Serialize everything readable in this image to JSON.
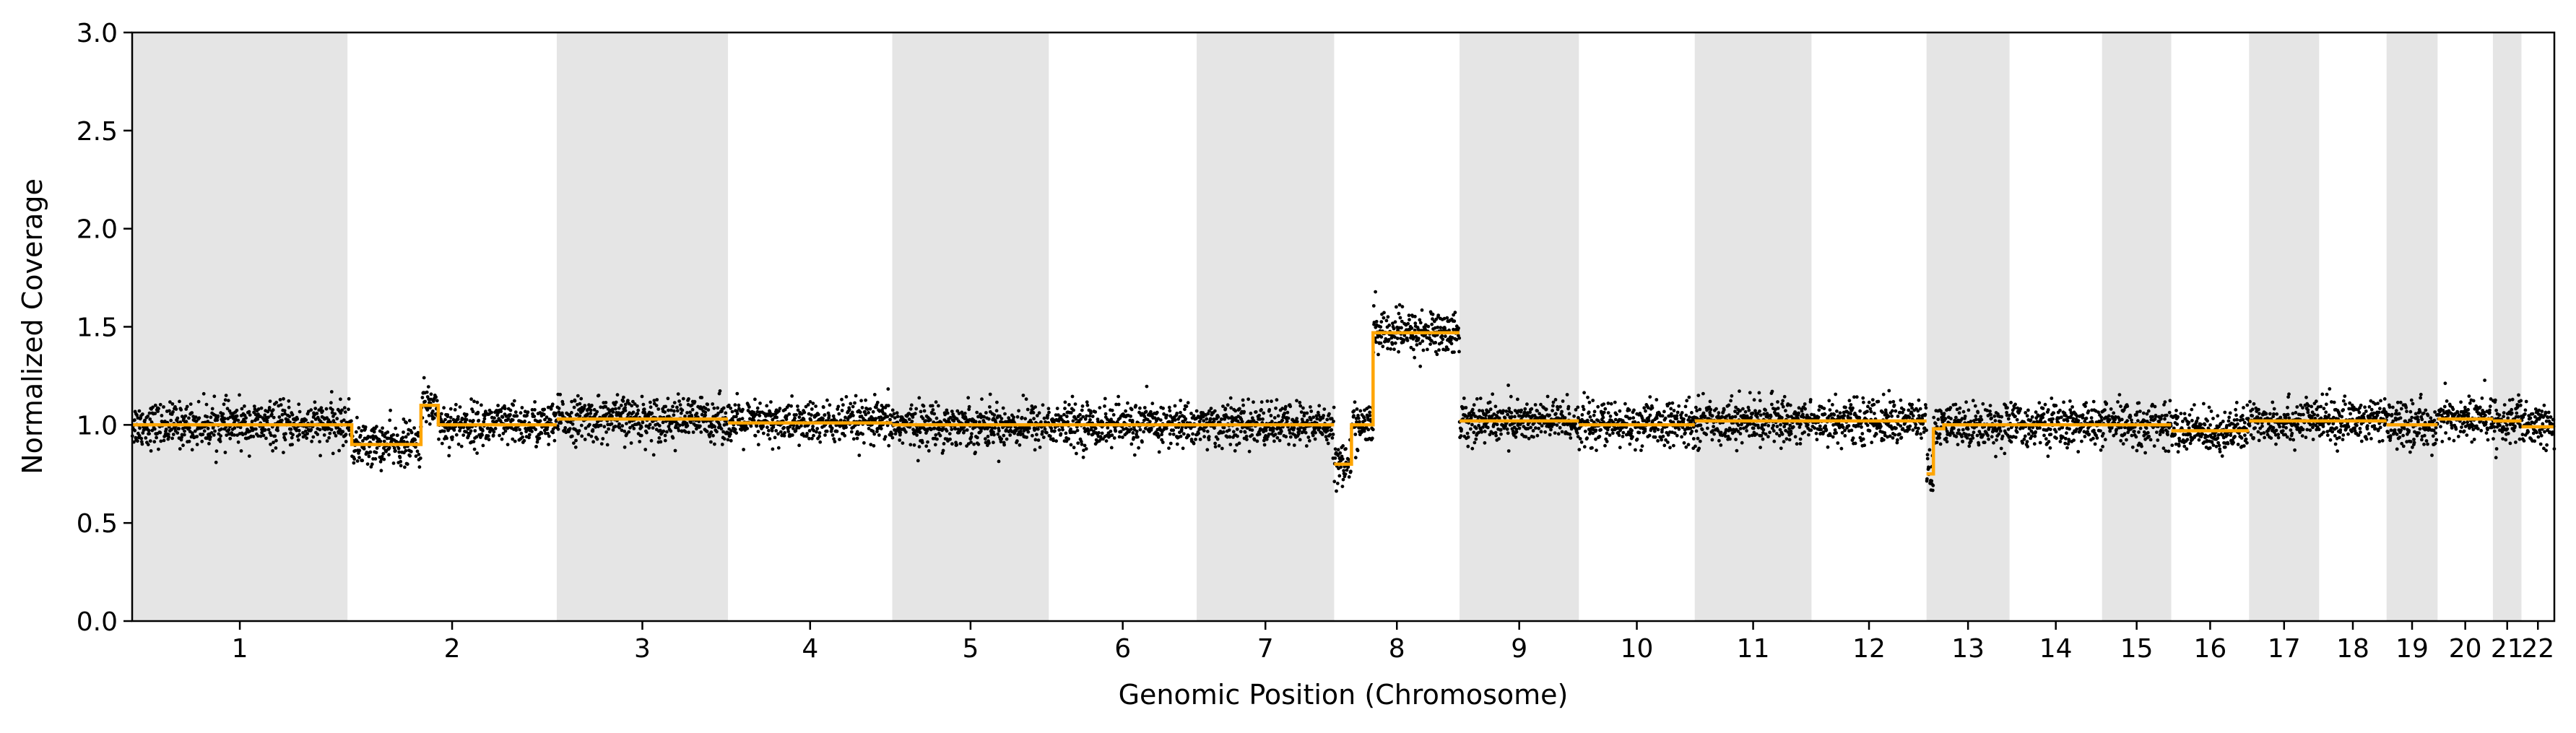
{
  "chart_data": {
    "type": "scatter",
    "title": "",
    "xlabel": "Genomic Position (Chromosome)",
    "ylabel": "Normalized Coverage",
    "ylim": [
      0,
      3.0
    ],
    "y_ticks": [
      "0.0",
      "0.5",
      "1.0",
      "1.5",
      "2.0",
      "2.5",
      "3.0"
    ],
    "grid": false,
    "legend": "none",
    "chromosome_band_color": "#e5e5e5",
    "point_color": "#000000",
    "segment_color": "#FFA500",
    "chromosomes": [
      {
        "label": "1",
        "length_mb": 249,
        "median": 1.0,
        "shaded": true
      },
      {
        "label": "2",
        "length_mb": 242,
        "median": 0.98,
        "shaded": false
      },
      {
        "label": "3",
        "length_mb": 198,
        "median": 1.02,
        "shaded": true
      },
      {
        "label": "4",
        "length_mb": 190,
        "median": 1.02,
        "shaded": false
      },
      {
        "label": "5",
        "length_mb": 181,
        "median": 1.0,
        "shaded": true
      },
      {
        "label": "6",
        "length_mb": 171,
        "median": 1.0,
        "shaded": false
      },
      {
        "label": "7",
        "length_mb": 159,
        "median": 1.0,
        "shaded": true
      },
      {
        "label": "8",
        "length_mb": 145,
        "median": 1.3,
        "shaded": false
      },
      {
        "label": "9",
        "length_mb": 138,
        "median": 1.02,
        "shaded": true
      },
      {
        "label": "10",
        "length_mb": 134,
        "median": 1.0,
        "shaded": false
      },
      {
        "label": "11",
        "length_mb": 135,
        "median": 1.02,
        "shaded": true
      },
      {
        "label": "12",
        "length_mb": 133,
        "median": 1.02,
        "shaded": false
      },
      {
        "label": "13",
        "length_mb": 96,
        "median": 0.95,
        "shaded": true
      },
      {
        "label": "14",
        "length_mb": 107,
        "median": 1.0,
        "shaded": false
      },
      {
        "label": "15",
        "length_mb": 80,
        "median": 1.0,
        "shaded": true
      },
      {
        "label": "16",
        "length_mb": 90,
        "median": 0.97,
        "shaded": false
      },
      {
        "label": "17",
        "length_mb": 81,
        "median": 1.02,
        "shaded": true
      },
      {
        "label": "18",
        "length_mb": 78,
        "median": 1.02,
        "shaded": false
      },
      {
        "label": "19",
        "length_mb": 59,
        "median": 1.0,
        "shaded": true
      },
      {
        "label": "20",
        "length_mb": 64,
        "median": 1.03,
        "shaded": false
      },
      {
        "label": "21",
        "length_mb": 33,
        "median": 1.02,
        "shaded": true
      },
      {
        "label": "22",
        "length_mb": 38,
        "median": 0.99,
        "shaded": false
      }
    ],
    "segments": [
      {
        "chrom": "1",
        "start_mb": 0,
        "end_mb": 249,
        "value": 1.0
      },
      {
        "chrom": "2",
        "start_mb": 0,
        "end_mb": 5,
        "value": 1.0
      },
      {
        "chrom": "2",
        "start_mb": 5,
        "end_mb": 85,
        "value": 0.9
      },
      {
        "chrom": "2",
        "start_mb": 85,
        "end_mb": 105,
        "value": 1.1
      },
      {
        "chrom": "2",
        "start_mb": 105,
        "end_mb": 242,
        "value": 1.0
      },
      {
        "chrom": "3",
        "start_mb": 0,
        "end_mb": 198,
        "value": 1.03
      },
      {
        "chrom": "4",
        "start_mb": 0,
        "end_mb": 190,
        "value": 1.01
      },
      {
        "chrom": "5",
        "start_mb": 0,
        "end_mb": 181,
        "value": 1.0
      },
      {
        "chrom": "6",
        "start_mb": 0,
        "end_mb": 171,
        "value": 1.0
      },
      {
        "chrom": "7",
        "start_mb": 0,
        "end_mb": 159,
        "value": 1.0
      },
      {
        "chrom": "8",
        "start_mb": 0,
        "end_mb": 20,
        "value": 0.8
      },
      {
        "chrom": "8",
        "start_mb": 20,
        "end_mb": 45,
        "value": 1.0
      },
      {
        "chrom": "8",
        "start_mb": 45,
        "end_mb": 145,
        "value": 1.47
      },
      {
        "chrom": "9",
        "start_mb": 0,
        "end_mb": 138,
        "value": 1.02
      },
      {
        "chrom": "10",
        "start_mb": 0,
        "end_mb": 134,
        "value": 1.0
      },
      {
        "chrom": "11",
        "start_mb": 0,
        "end_mb": 135,
        "value": 1.02
      },
      {
        "chrom": "12",
        "start_mb": 0,
        "end_mb": 133,
        "value": 1.02
      },
      {
        "chrom": "13",
        "start_mb": 0,
        "end_mb": 8,
        "value": 0.75
      },
      {
        "chrom": "13",
        "start_mb": 8,
        "end_mb": 20,
        "value": 0.98
      },
      {
        "chrom": "13",
        "start_mb": 20,
        "end_mb": 96,
        "value": 1.0
      },
      {
        "chrom": "14",
        "start_mb": 0,
        "end_mb": 107,
        "value": 1.0
      },
      {
        "chrom": "15",
        "start_mb": 0,
        "end_mb": 80,
        "value": 1.0
      },
      {
        "chrom": "16",
        "start_mb": 0,
        "end_mb": 90,
        "value": 0.97
      },
      {
        "chrom": "17",
        "start_mb": 0,
        "end_mb": 81,
        "value": 1.02
      },
      {
        "chrom": "18",
        "start_mb": 0,
        "end_mb": 78,
        "value": 1.02
      },
      {
        "chrom": "19",
        "start_mb": 0,
        "end_mb": 59,
        "value": 1.0
      },
      {
        "chrom": "20",
        "start_mb": 0,
        "end_mb": 64,
        "value": 1.03
      },
      {
        "chrom": "21",
        "start_mb": 0,
        "end_mb": 33,
        "value": 1.02
      },
      {
        "chrom": "22",
        "start_mb": 0,
        "end_mb": 38,
        "value": 0.99
      }
    ]
  }
}
